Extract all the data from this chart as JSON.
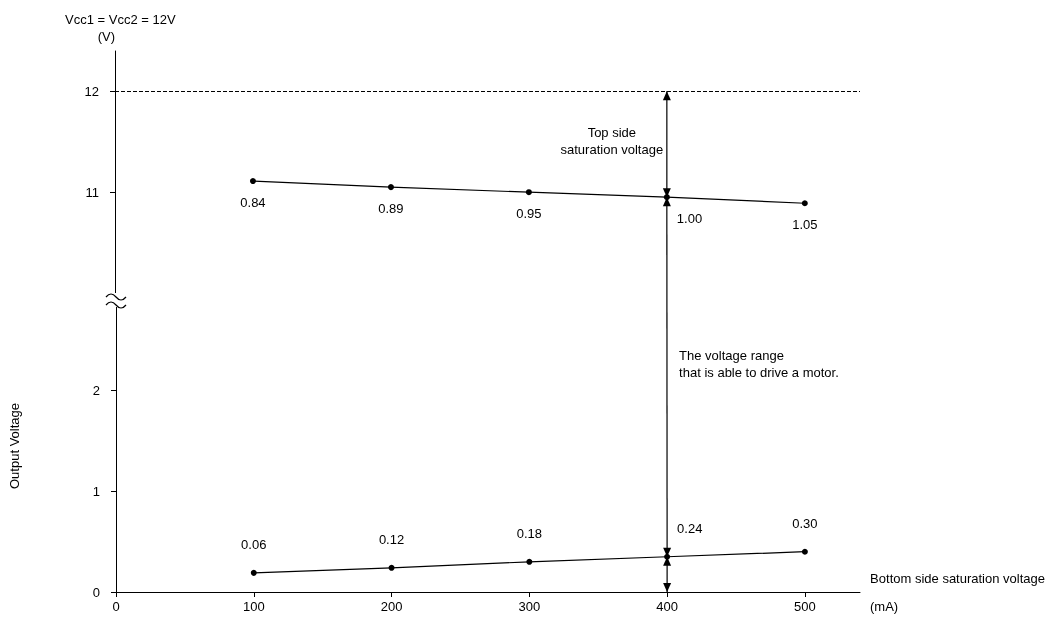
{
  "chart_data": [
    {
      "type": "line",
      "title": "Vcc1 = Vcc2 = 12V",
      "ylabel": "(V)",
      "x": [
        100,
        200,
        300,
        400,
        500
      ],
      "series": [
        {
          "color": "#000000",
          "values": [
            11.11,
            11.05,
            11.0,
            10.95,
            10.89
          ]
        }
      ],
      "xlim": [
        0,
        540
      ],
      "ylim": [
        10,
        12.4
      ],
      "yticks": [
        11,
        12
      ],
      "tick_labels": "y",
      "marker": "circle",
      "line_style": "solid",
      "ref_lines": [
        {
          "axis": "y",
          "value": 12,
          "color": "#000000",
          "line_style": "dashed"
        }
      ],
      "annotations": [
        "Top side\nsaturation voltage",
        {
          "text": "0.84",
          "x": 100,
          "y": 11.11
        },
        {
          "text": "0.89",
          "x": 200,
          "y": 11.05
        },
        {
          "text": "0.95",
          "x": 300,
          "y": 11.0
        },
        {
          "text": "1.00",
          "x": 400,
          "y": 10.95
        },
        {
          "text": "1.05",
          "x": 500,
          "y": 10.89
        }
      ]
    },
    {
      "type": "line",
      "xlabel": "(mA)",
      "ylabel": "Output Voltage",
      "x": [
        100,
        200,
        300,
        400,
        500
      ],
      "series": [
        {
          "color": "#000000",
          "values": [
            0.19,
            0.24,
            0.3,
            0.35,
            0.4
          ]
        }
      ],
      "xlim": [
        0,
        540
      ],
      "xticks": [
        0,
        100,
        200,
        300,
        400,
        500
      ],
      "ylim": [
        0,
        2.9
      ],
      "yticks": [
        0,
        1,
        2
      ],
      "marker": "circle",
      "line_style": "solid",
      "annotations": [
        "The voltage range\nthat is able to drive a motor.",
        "Bottom side saturation voltage",
        {
          "text": "0.06",
          "x": 100,
          "y": 0.19
        },
        {
          "text": "0.12",
          "x": 200,
          "y": 0.24
        },
        {
          "text": "0.18",
          "x": 300,
          "y": 0.3
        },
        {
          "text": "0.24",
          "x": 400,
          "y": 0.35
        },
        {
          "text": "0.30",
          "x": 500,
          "y": 0.4
        }
      ]
    }
  ]
}
